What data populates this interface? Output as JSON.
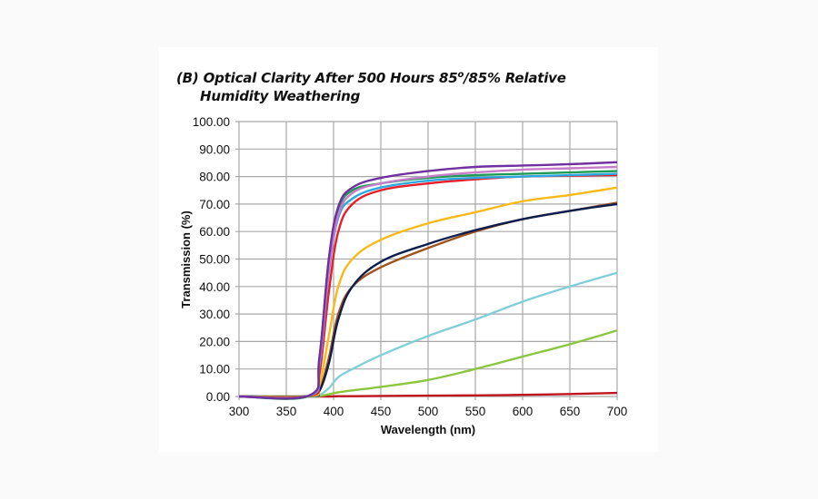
{
  "title": {
    "line1_pre": "(B) Optical Clarity After 500 Hours 85",
    "line1_sup": "o",
    "line1_post": "/85% Relative",
    "line2": "Humidity Weathering"
  },
  "chart_data": {
    "type": "line",
    "title": "(B) Optical Clarity After 500 Hours 85°/85% Relative Humidity Weathering",
    "xlabel": "Wavelength (nm)",
    "ylabel": "Transmission (%)",
    "xlim": [
      300,
      700
    ],
    "ylim": [
      0,
      100
    ],
    "grid": true,
    "legend": "none",
    "x_ticks": [
      "300",
      "350",
      "400",
      "450",
      "500",
      "550",
      "600",
      "650",
      "700"
    ],
    "y_ticks": [
      "0.00",
      "10.00",
      "20.00",
      "30.00",
      "40.00",
      "50.00",
      "60.00",
      "70.00",
      "80.00",
      "90.00",
      "100.00"
    ],
    "x": [
      300,
      375,
      385,
      395,
      405,
      420,
      450,
      500,
      550,
      600,
      650,
      700
    ],
    "series": [
      {
        "name": "purple",
        "color": "#7030a0",
        "values": [
          0,
          0.5,
          14,
          50,
          69,
          76,
          79.5,
          82,
          83.5,
          84,
          84.5,
          85.2
        ]
      },
      {
        "name": "orchid",
        "color": "#c77dc8",
        "values": [
          0,
          0.4,
          12,
          46,
          66,
          74,
          77.5,
          80,
          81.5,
          82.5,
          83,
          83.5
        ]
      },
      {
        "name": "green",
        "color": "#1f9a55",
        "values": [
          0,
          0.3,
          14,
          50,
          68,
          75,
          77.5,
          79.5,
          80.5,
          81,
          81.5,
          82
        ]
      },
      {
        "name": "cyan",
        "color": "#2aa8e0",
        "values": [
          0,
          0.3,
          11,
          45,
          65,
          72,
          76,
          78.5,
          79.5,
          80,
          80.5,
          81
        ]
      },
      {
        "name": "red",
        "color": "#ec1c24",
        "values": [
          0,
          0.2,
          8,
          38,
          60,
          70,
          75,
          77.5,
          79,
          80,
          80.3,
          80.6
        ]
      },
      {
        "name": "gold",
        "color": "#fbb917",
        "values": [
          0,
          0.1,
          4,
          22,
          40,
          50,
          57,
          63,
          67,
          71,
          73.3,
          76
        ]
      },
      {
        "name": "navy",
        "color": "#0d1e4e",
        "values": [
          0,
          0.1,
          2,
          12,
          28,
          40,
          49,
          55.5,
          60.5,
          64.5,
          67.5,
          70
        ]
      },
      {
        "name": "brown",
        "color": "#a0521c",
        "values": [
          0,
          0.1,
          2.5,
          14,
          30,
          40,
          47,
          54,
          60,
          64.5,
          67.5,
          70.5
        ]
      },
      {
        "name": "lightcyan",
        "color": "#80d0d6",
        "values": [
          0,
          0,
          0.5,
          3,
          7,
          10,
          15,
          22,
          28,
          34.5,
          40,
          45
        ]
      },
      {
        "name": "lightgreen",
        "color": "#8cc63e",
        "values": [
          0,
          0,
          0.2,
          0.8,
          1.5,
          2.2,
          3.5,
          6,
          10,
          14.5,
          19,
          24
        ]
      },
      {
        "name": "darkred",
        "color": "#c0141c",
        "values": [
          0,
          0,
          0,
          0,
          0.1,
          0.1,
          0.2,
          0.3,
          0.4,
          0.6,
          0.9,
          1.3
        ]
      }
    ]
  }
}
